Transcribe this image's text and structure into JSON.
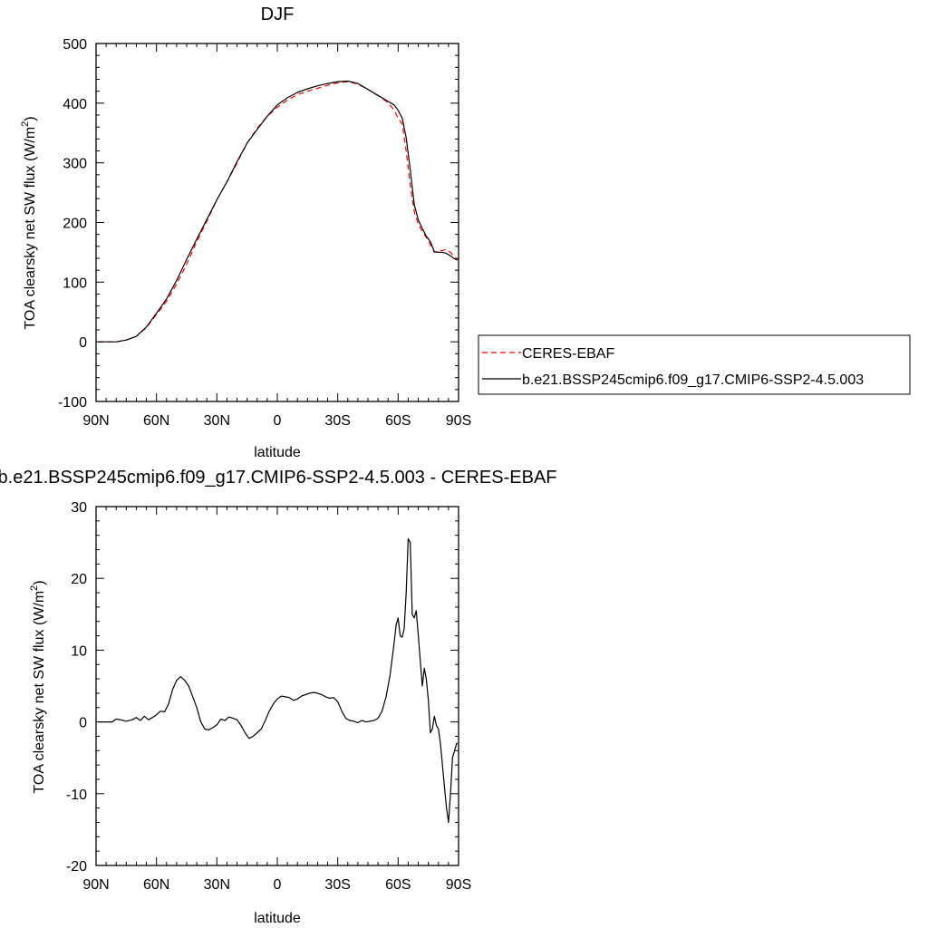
{
  "chart_data": [
    {
      "type": "line",
      "title": "DJF",
      "xlabel": "latitude",
      "ylabel_main": "TOA clearsky net SW flux (W/m",
      "ylabel_sup": "2",
      "ylabel_close": ")",
      "xlim": [
        90,
        -90
      ],
      "ylim": [
        -100,
        500
      ],
      "xticks": [
        90,
        60,
        30,
        0,
        -30,
        -60,
        -90
      ],
      "xtick_labels": [
        "90N",
        "60N",
        "30N",
        "0",
        "30S",
        "60S",
        "90S"
      ],
      "yticks": [
        -100,
        0,
        100,
        200,
        300,
        400,
        500
      ],
      "ytick_labels": [
        "-100",
        "0",
        "100",
        "200",
        "300",
        "400",
        "500"
      ],
      "legend_position": "right",
      "series": [
        {
          "name": "CERES-EBAF",
          "color": "#ff0000",
          "style": "dashed",
          "x": [
            89,
            85,
            80,
            75,
            70,
            65,
            60,
            55,
            50,
            45,
            40,
            35,
            30,
            25,
            20,
            15,
            10,
            5,
            0,
            -5,
            -10,
            -15,
            -20,
            -25,
            -30,
            -35,
            -40,
            -45,
            -50,
            -55,
            -58,
            -60,
            -62,
            -64,
            -66,
            -68,
            -70,
            -72,
            -74,
            -76,
            -78,
            -80,
            -82,
            -84,
            -86,
            -88,
            -89.5
          ],
          "y": [
            0,
            0,
            0,
            3,
            9,
            24,
            46,
            68,
            97,
            130,
            168,
            202,
            238,
            268,
            300,
            333,
            358,
            378,
            393,
            405,
            414,
            420,
            425,
            430,
            434,
            436,
            432,
            423,
            413,
            401,
            388,
            375,
            365,
            320,
            262,
            218,
            197,
            185,
            175,
            163,
            150,
            152,
            153,
            155,
            150,
            141,
            137
          ]
        },
        {
          "name": "b.e21.BSSP245cmip6.f09_g17.CMIP6-SSP2-4.5.003",
          "color": "#000000",
          "style": "solid",
          "x": [
            89,
            85,
            80,
            75,
            70,
            65,
            60,
            55,
            50,
            45,
            40,
            35,
            30,
            25,
            20,
            15,
            10,
            5,
            0,
            -5,
            -10,
            -15,
            -20,
            -25,
            -30,
            -35,
            -40,
            -45,
            -50,
            -55,
            -58,
            -60,
            -62,
            -64,
            -66,
            -68,
            -70,
            -72,
            -74,
            -76,
            -78,
            -80,
            -82,
            -84,
            -86,
            -88,
            -89.5
          ],
          "y": [
            0,
            0,
            0,
            3,
            9,
            25,
            48,
            72,
            103,
            138,
            172,
            205,
            238,
            268,
            302,
            333,
            356,
            378,
            397,
            409,
            418,
            424,
            429,
            433,
            436,
            437,
            433,
            423,
            413,
            403,
            397,
            388,
            375,
            342,
            288,
            230,
            204,
            190,
            177,
            168,
            151,
            150,
            150,
            148,
            144,
            139,
            137
          ]
        }
      ]
    },
    {
      "type": "line",
      "title": "b.e21.BSSP245cmip6.f09_g17.CMIP6-SSP2-4.5.003 - CERES-EBAF",
      "xlabel": "latitude",
      "ylabel_main": "TOA clearsky net SW flux (W/m",
      "ylabel_sup": "2",
      "ylabel_close": ")",
      "xlim": [
        90,
        -90
      ],
      "ylim": [
        -20,
        30
      ],
      "xticks": [
        90,
        60,
        30,
        0,
        -30,
        -60,
        -90
      ],
      "xtick_labels": [
        "90N",
        "60N",
        "30N",
        "0",
        "30S",
        "60S",
        "90S"
      ],
      "yticks": [
        -20,
        -10,
        0,
        10,
        20,
        30
      ],
      "ytick_labels": [
        "-20",
        "-10",
        "0",
        "10",
        "20",
        "30"
      ],
      "series": [
        {
          "color": "#000000",
          "style": "solid",
          "x": [
            89,
            82,
            80,
            78,
            75,
            72,
            70,
            68,
            66,
            64,
            62,
            60,
            58,
            56,
            54,
            52,
            50,
            48,
            46,
            44,
            42,
            40,
            38,
            36,
            34,
            32,
            30,
            28,
            26,
            24,
            22,
            20,
            18,
            16,
            14,
            12,
            10,
            8,
            6,
            4,
            2,
            0,
            -2,
            -4,
            -6,
            -8,
            -10,
            -12,
            -14,
            -16,
            -18,
            -20,
            -22,
            -24,
            -26,
            -28,
            -30,
            -32,
            -34,
            -36,
            -38,
            -40,
            -42,
            -44,
            -46,
            -48,
            -50,
            -52,
            -54,
            -56,
            -58,
            -59,
            -60,
            -61,
            -62,
            -63,
            -64,
            -65,
            -66,
            -67,
            -68,
            -69,
            -70,
            -71,
            -72,
            -73,
            -74,
            -75,
            -76,
            -77,
            -78,
            -79,
            -80,
            -81,
            -82,
            -83,
            -84,
            -85,
            -86,
            -87,
            -88,
            -89,
            -89.5
          ],
          "y": [
            0,
            0,
            0.4,
            0.3,
            0.1,
            0.3,
            0.6,
            0.2,
            0.8,
            0.3,
            0.6,
            1.0,
            1.5,
            1.4,
            2.5,
            4.5,
            5.8,
            6.3,
            5.8,
            5.0,
            3.5,
            2.0,
            0.0,
            -1.0,
            -1.1,
            -0.8,
            -0.4,
            0.4,
            0.2,
            0.7,
            0.5,
            0.3,
            -0.5,
            -1.5,
            -2.3,
            -2.0,
            -1.5,
            -1.0,
            0.2,
            1.5,
            2.5,
            3.2,
            3.6,
            3.5,
            3.4,
            3.0,
            3.2,
            3.6,
            3.8,
            4.0,
            4.1,
            4.0,
            3.8,
            3.5,
            3.3,
            3.4,
            2.8,
            1.5,
            0.5,
            0.2,
            0.1,
            -0.1,
            0.2,
            0.0,
            0.1,
            0.2,
            0.5,
            1.5,
            3.5,
            6.5,
            11.0,
            13.5,
            14.5,
            12.0,
            11.8,
            13.0,
            18.0,
            25.5,
            25.0,
            15.0,
            14.5,
            15.5,
            12.0,
            8.5,
            5.0,
            7.5,
            6.0,
            3.0,
            -1.5,
            -1.0,
            0.8,
            -0.5,
            -1.0,
            -3.0,
            -6.0,
            -9.0,
            -12.0,
            -14.0,
            -10.0,
            -5.0,
            -4.0,
            -3.0,
            -3.0
          ]
        }
      ]
    }
  ]
}
